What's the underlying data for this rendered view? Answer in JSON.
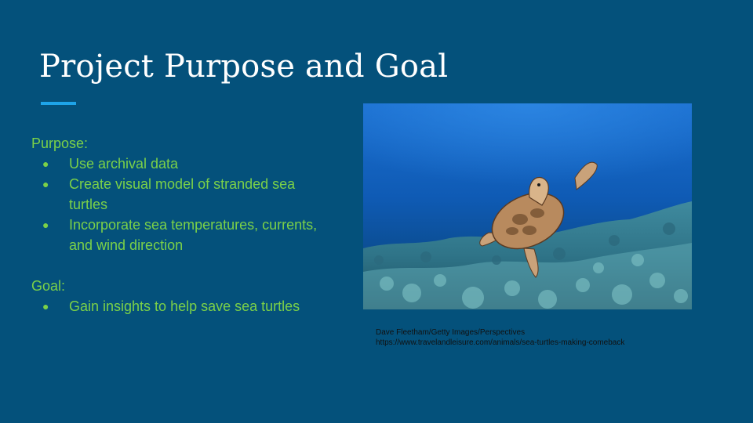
{
  "slide": {
    "title": "Project Purpose and Goal",
    "purpose_label": "Purpose:",
    "purpose_items": [
      "Use archival data",
      "Create visual model of stranded sea turtles",
      "Incorporate sea temperatures, currents, and wind direction"
    ],
    "goal_label": "Goal:",
    "goal_items": [
      "Gain insights to help save sea turtles"
    ],
    "credit_line_1": "Dave Fleetham/Getty Images/Perspectives",
    "credit_line_2": "https://www.travelandleisure.com/animals/sea-turtles-making-comeback"
  },
  "colors": {
    "background": "#04517b",
    "accent_rule": "#1ea4e9",
    "body_text": "#7bd148",
    "title_text": "#ffffff"
  }
}
